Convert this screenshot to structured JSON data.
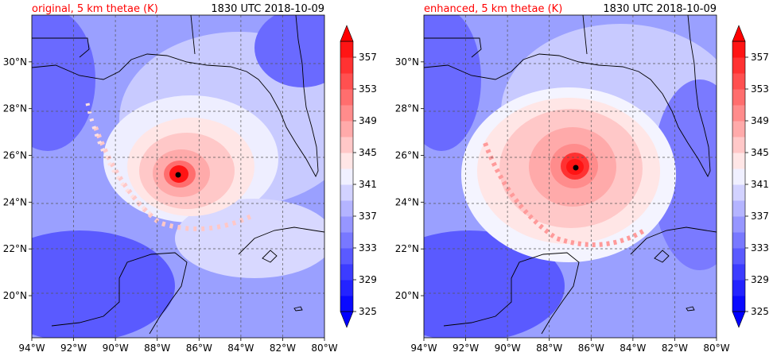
{
  "colors": {
    "title_left": "#ff0000",
    "title_right": "#000000",
    "scale": [
      "#0a0aff",
      "#2323ff",
      "#3c3cff",
      "#5a5aff",
      "#7878ff",
      "#9696ff",
      "#b4b4ff",
      "#d2d2ff",
      "#f0f0ff",
      "#ffe6e6",
      "#ffc8c8",
      "#ffaaaa",
      "#ff8c8c",
      "#ff6e6e",
      "#ff5050",
      "#ff3232",
      "#ff1414"
    ],
    "coast": "#000000",
    "grid": "#555555"
  },
  "chart_data": [
    {
      "type": "heatmap",
      "title": "original, 5 km thetae (K)",
      "title_right": "1830 UTC 2018-10-09",
      "x_ticks": [
        "94°W",
        "92°W",
        "90°W",
        "88°W",
        "86°W",
        "84°W",
        "82°W",
        "80°W"
      ],
      "x_values": [
        -94,
        -92,
        -90,
        -88,
        -86,
        -84,
        -82,
        -80
      ],
      "y_ticks": [
        "20°N",
        "22°N",
        "24°N",
        "26°N",
        "28°N",
        "30°N"
      ],
      "y_values": [
        20,
        22,
        24,
        26,
        28,
        30
      ],
      "xlim": [
        -94,
        -80
      ],
      "ylim": [
        18.2,
        32
      ],
      "grid": true,
      "colorbar": {
        "ticks": [
          "325",
          "329",
          "333",
          "337",
          "341",
          "345",
          "349",
          "353",
          "357"
        ],
        "values": [
          325,
          329,
          333,
          337,
          341,
          345,
          349,
          353,
          357
        ],
        "range": [
          325,
          359
        ],
        "extend": "both"
      },
      "storm_center": {
        "lon": -86.9,
        "lat": 25.25
      }
    },
    {
      "type": "heatmap",
      "title": "enhanced, 5 km thetae (K)",
      "title_right": "1830 UTC 2018-10-09",
      "x_ticks": [
        "94°W",
        "92°W",
        "90°W",
        "88°W",
        "86°W",
        "84°W",
        "82°W",
        "80°W"
      ],
      "x_values": [
        -94,
        -92,
        -90,
        -88,
        -86,
        -84,
        -82,
        -80
      ],
      "y_ticks": [
        "20°N",
        "22°N",
        "24°N",
        "26°N",
        "28°N",
        "30°N"
      ],
      "y_values": [
        20,
        22,
        24,
        26,
        28,
        30
      ],
      "xlim": [
        -94,
        -80
      ],
      "ylim": [
        18.2,
        32
      ],
      "grid": true,
      "colorbar": {
        "ticks": [
          "325",
          "329",
          "333",
          "337",
          "341",
          "345",
          "349",
          "353",
          "357"
        ],
        "values": [
          325,
          329,
          333,
          337,
          341,
          345,
          349,
          353,
          357
        ],
        "range": [
          325,
          359
        ],
        "extend": "both"
      },
      "storm_center": {
        "lon": -86.7,
        "lat": 25.6
      }
    }
  ]
}
